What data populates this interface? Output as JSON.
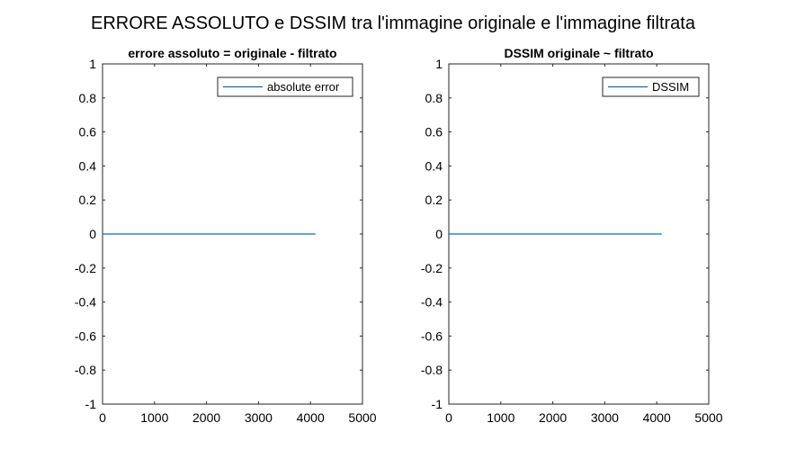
{
  "figure": {
    "title": "ERRORE ASSOLUTO e DSSIM tra l'immagine originale e l'immagine filtrata"
  },
  "chart_data": [
    {
      "type": "line",
      "title": "errore assoluto = originale - filtrato",
      "xlabel": "",
      "ylabel": "",
      "xlim": [
        0,
        5000
      ],
      "ylim": [
        -1,
        1
      ],
      "xticks": [
        "0",
        "1000",
        "2000",
        "3000",
        "4000",
        "5000"
      ],
      "yticks": [
        "1",
        "0.8",
        "0.6",
        "0.4",
        "0.2",
        "0",
        "-0.2",
        "-0.4",
        "-0.6",
        "-0.8",
        "-1"
      ],
      "grid": false,
      "legend_position": "top-right",
      "series": [
        {
          "name": "absolute error",
          "color": "#0072bd",
          "x": [
            1,
            4096
          ],
          "y": [
            0,
            0
          ]
        }
      ]
    },
    {
      "type": "line",
      "title": "DSSIM originale ~ filtrato",
      "xlabel": "",
      "ylabel": "",
      "xlim": [
        0,
        5000
      ],
      "ylim": [
        -1,
        1
      ],
      "xticks": [
        "0",
        "1000",
        "2000",
        "3000",
        "4000",
        "5000"
      ],
      "yticks": [
        "1",
        "0.8",
        "0.6",
        "0.4",
        "0.2",
        "0",
        "-0.2",
        "-0.4",
        "-0.6",
        "-0.8",
        "-1"
      ],
      "grid": false,
      "legend_position": "top-right",
      "series": [
        {
          "name": "DSSIM",
          "color": "#0072bd",
          "x": [
            1,
            4096
          ],
          "y": [
            0,
            0
          ]
        }
      ]
    }
  ]
}
